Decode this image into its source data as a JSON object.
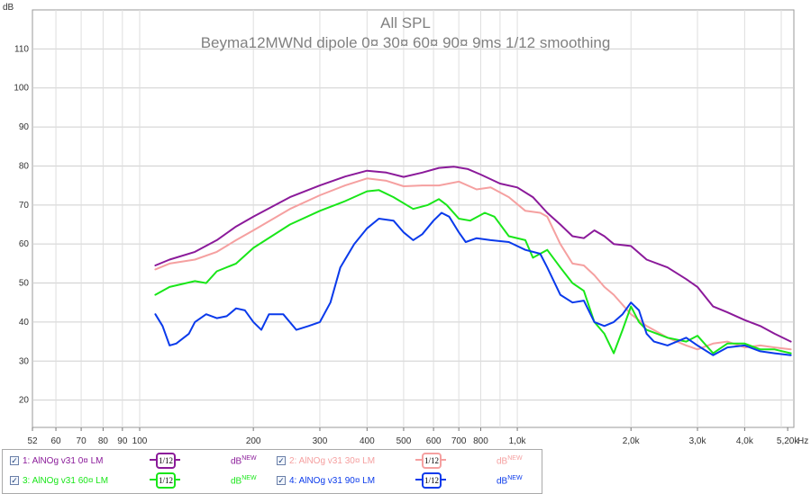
{
  "chart_data": {
    "type": "line",
    "title": "All SPL",
    "subtitle": "Beyma12MWNd dipole 0¤ 30¤ 60¤ 90¤ 9ms 1/12 smoothing",
    "ylabel": "dB",
    "xunit": "Hz",
    "xscale": "log",
    "xlim": [
      52,
      5400
    ],
    "ylim": [
      13,
      120
    ],
    "grid": true,
    "x_tick_labels": [
      "52",
      "60",
      "70",
      "80",
      "90",
      "100",
      "200",
      "300",
      "400",
      "500",
      "600",
      "700",
      "800",
      "1,0k",
      "2,0k",
      "3,0k",
      "4,0k",
      "5,20k"
    ],
    "x_tick_values": [
      52,
      60,
      70,
      80,
      90,
      100,
      200,
      300,
      400,
      500,
      600,
      700,
      800,
      1000,
      2000,
      3000,
      4000,
      5200
    ],
    "y_tick_values": [
      20,
      30,
      40,
      50,
      60,
      70,
      80,
      90,
      100,
      110
    ],
    "series": [
      {
        "name": "1: AlNOg v31 0¤ LM",
        "color": "#8b1a9a",
        "points": [
          [
            110,
            54.5
          ],
          [
            120,
            56
          ],
          [
            140,
            58
          ],
          [
            160,
            61
          ],
          [
            180,
            64.5
          ],
          [
            200,
            67
          ],
          [
            250,
            72
          ],
          [
            300,
            75
          ],
          [
            350,
            77.3
          ],
          [
            400,
            78.8
          ],
          [
            450,
            78.3
          ],
          [
            500,
            77.2
          ],
          [
            560,
            78.3
          ],
          [
            620,
            79.5
          ],
          [
            680,
            79.8
          ],
          [
            740,
            79.2
          ],
          [
            800,
            77.8
          ],
          [
            900,
            75.5
          ],
          [
            1000,
            74.5
          ],
          [
            1100,
            72
          ],
          [
            1200,
            68
          ],
          [
            1300,
            65
          ],
          [
            1400,
            62
          ],
          [
            1500,
            61.5
          ],
          [
            1600,
            63.5
          ],
          [
            1700,
            62
          ],
          [
            1800,
            60
          ],
          [
            2000,
            59.5
          ],
          [
            2200,
            56
          ],
          [
            2500,
            54
          ],
          [
            2800,
            51
          ],
          [
            3000,
            49
          ],
          [
            3300,
            44
          ],
          [
            3600,
            42.5
          ],
          [
            4000,
            40.5
          ],
          [
            4400,
            39
          ],
          [
            4800,
            37
          ],
          [
            5300,
            35
          ]
        ]
      },
      {
        "name": "2: AlNOg v31 30¤ LM",
        "color": "#f5a0a0",
        "points": [
          [
            110,
            53.5
          ],
          [
            120,
            55
          ],
          [
            140,
            56
          ],
          [
            160,
            58
          ],
          [
            180,
            61
          ],
          [
            200,
            63.5
          ],
          [
            250,
            69
          ],
          [
            300,
            72.5
          ],
          [
            350,
            75
          ],
          [
            400,
            76.8
          ],
          [
            450,
            76.2
          ],
          [
            500,
            74.8
          ],
          [
            560,
            75
          ],
          [
            620,
            75
          ],
          [
            700,
            76
          ],
          [
            780,
            74
          ],
          [
            850,
            74.5
          ],
          [
            950,
            72
          ],
          [
            1050,
            68.5
          ],
          [
            1150,
            68
          ],
          [
            1200,
            67
          ],
          [
            1300,
            60
          ],
          [
            1400,
            55
          ],
          [
            1500,
            54.5
          ],
          [
            1600,
            52
          ],
          [
            1700,
            49
          ],
          [
            1800,
            47
          ],
          [
            2000,
            42
          ],
          [
            2200,
            39
          ],
          [
            2500,
            36
          ],
          [
            2800,
            34
          ],
          [
            3000,
            33
          ],
          [
            3300,
            34.5
          ],
          [
            3600,
            35
          ],
          [
            4000,
            33.5
          ],
          [
            4400,
            34
          ],
          [
            4800,
            33.5
          ],
          [
            5300,
            33
          ]
        ]
      },
      {
        "name": "3: AlNOg v31 60¤ LM",
        "color": "#19e619",
        "points": [
          [
            110,
            47
          ],
          [
            120,
            49
          ],
          [
            140,
            50.5
          ],
          [
            150,
            50
          ],
          [
            160,
            53
          ],
          [
            180,
            55
          ],
          [
            200,
            59
          ],
          [
            250,
            65
          ],
          [
            300,
            68.5
          ],
          [
            350,
            71
          ],
          [
            400,
            73.5
          ],
          [
            430,
            73.8
          ],
          [
            470,
            72
          ],
          [
            530,
            69
          ],
          [
            580,
            70
          ],
          [
            620,
            71.5
          ],
          [
            650,
            70
          ],
          [
            700,
            66.5
          ],
          [
            750,
            66
          ],
          [
            820,
            68
          ],
          [
            870,
            67
          ],
          [
            950,
            62
          ],
          [
            1050,
            61
          ],
          [
            1100,
            56.5
          ],
          [
            1200,
            58.5
          ],
          [
            1300,
            54
          ],
          [
            1400,
            50
          ],
          [
            1500,
            48
          ],
          [
            1600,
            40
          ],
          [
            1700,
            37
          ],
          [
            1800,
            32
          ],
          [
            1900,
            38
          ],
          [
            2000,
            44
          ],
          [
            2100,
            40
          ],
          [
            2200,
            38
          ],
          [
            2500,
            36
          ],
          [
            2800,
            35
          ],
          [
            3000,
            36.5
          ],
          [
            3300,
            32
          ],
          [
            3600,
            34.5
          ],
          [
            4000,
            34.5
          ],
          [
            4400,
            33
          ],
          [
            4800,
            33
          ],
          [
            5300,
            32
          ]
        ]
      },
      {
        "name": "4: AlNOg v31 90¤ LM",
        "color": "#0a3aeb",
        "points": [
          [
            110,
            42
          ],
          [
            115,
            39
          ],
          [
            120,
            34
          ],
          [
            125,
            34.5
          ],
          [
            135,
            37
          ],
          [
            140,
            40
          ],
          [
            150,
            42
          ],
          [
            160,
            41
          ],
          [
            170,
            41.5
          ],
          [
            180,
            43.5
          ],
          [
            190,
            43
          ],
          [
            200,
            40
          ],
          [
            210,
            38
          ],
          [
            220,
            42
          ],
          [
            240,
            42
          ],
          [
            260,
            38
          ],
          [
            280,
            39
          ],
          [
            300,
            40
          ],
          [
            320,
            45
          ],
          [
            340,
            54
          ],
          [
            370,
            60
          ],
          [
            400,
            64
          ],
          [
            430,
            66.5
          ],
          [
            470,
            66
          ],
          [
            500,
            63
          ],
          [
            530,
            61
          ],
          [
            560,
            62.5
          ],
          [
            600,
            66
          ],
          [
            630,
            68
          ],
          [
            660,
            67
          ],
          [
            700,
            63
          ],
          [
            730,
            60.5
          ],
          [
            780,
            61.5
          ],
          [
            850,
            61
          ],
          [
            950,
            60.5
          ],
          [
            1050,
            58.5
          ],
          [
            1100,
            58
          ],
          [
            1150,
            57.5
          ],
          [
            1200,
            54
          ],
          [
            1300,
            47
          ],
          [
            1400,
            45
          ],
          [
            1500,
            45.5
          ],
          [
            1600,
            40
          ],
          [
            1700,
            39
          ],
          [
            1800,
            40
          ],
          [
            1900,
            42
          ],
          [
            2000,
            45
          ],
          [
            2100,
            43
          ],
          [
            2200,
            37
          ],
          [
            2300,
            35
          ],
          [
            2500,
            34
          ],
          [
            2800,
            36
          ],
          [
            3000,
            34
          ],
          [
            3300,
            31.5
          ],
          [
            3600,
            33.5
          ],
          [
            4000,
            34
          ],
          [
            4400,
            32.5
          ],
          [
            4800,
            32
          ],
          [
            5300,
            31.5
          ]
        ]
      }
    ]
  },
  "legend": {
    "units": [
      "dB",
      "dB",
      "dB",
      "dB"
    ],
    "unit_sup": [
      "NEW",
      "NEW",
      "NEW",
      "NEW"
    ],
    "smoothing_label": "1/12",
    "check_mark": "✓"
  }
}
